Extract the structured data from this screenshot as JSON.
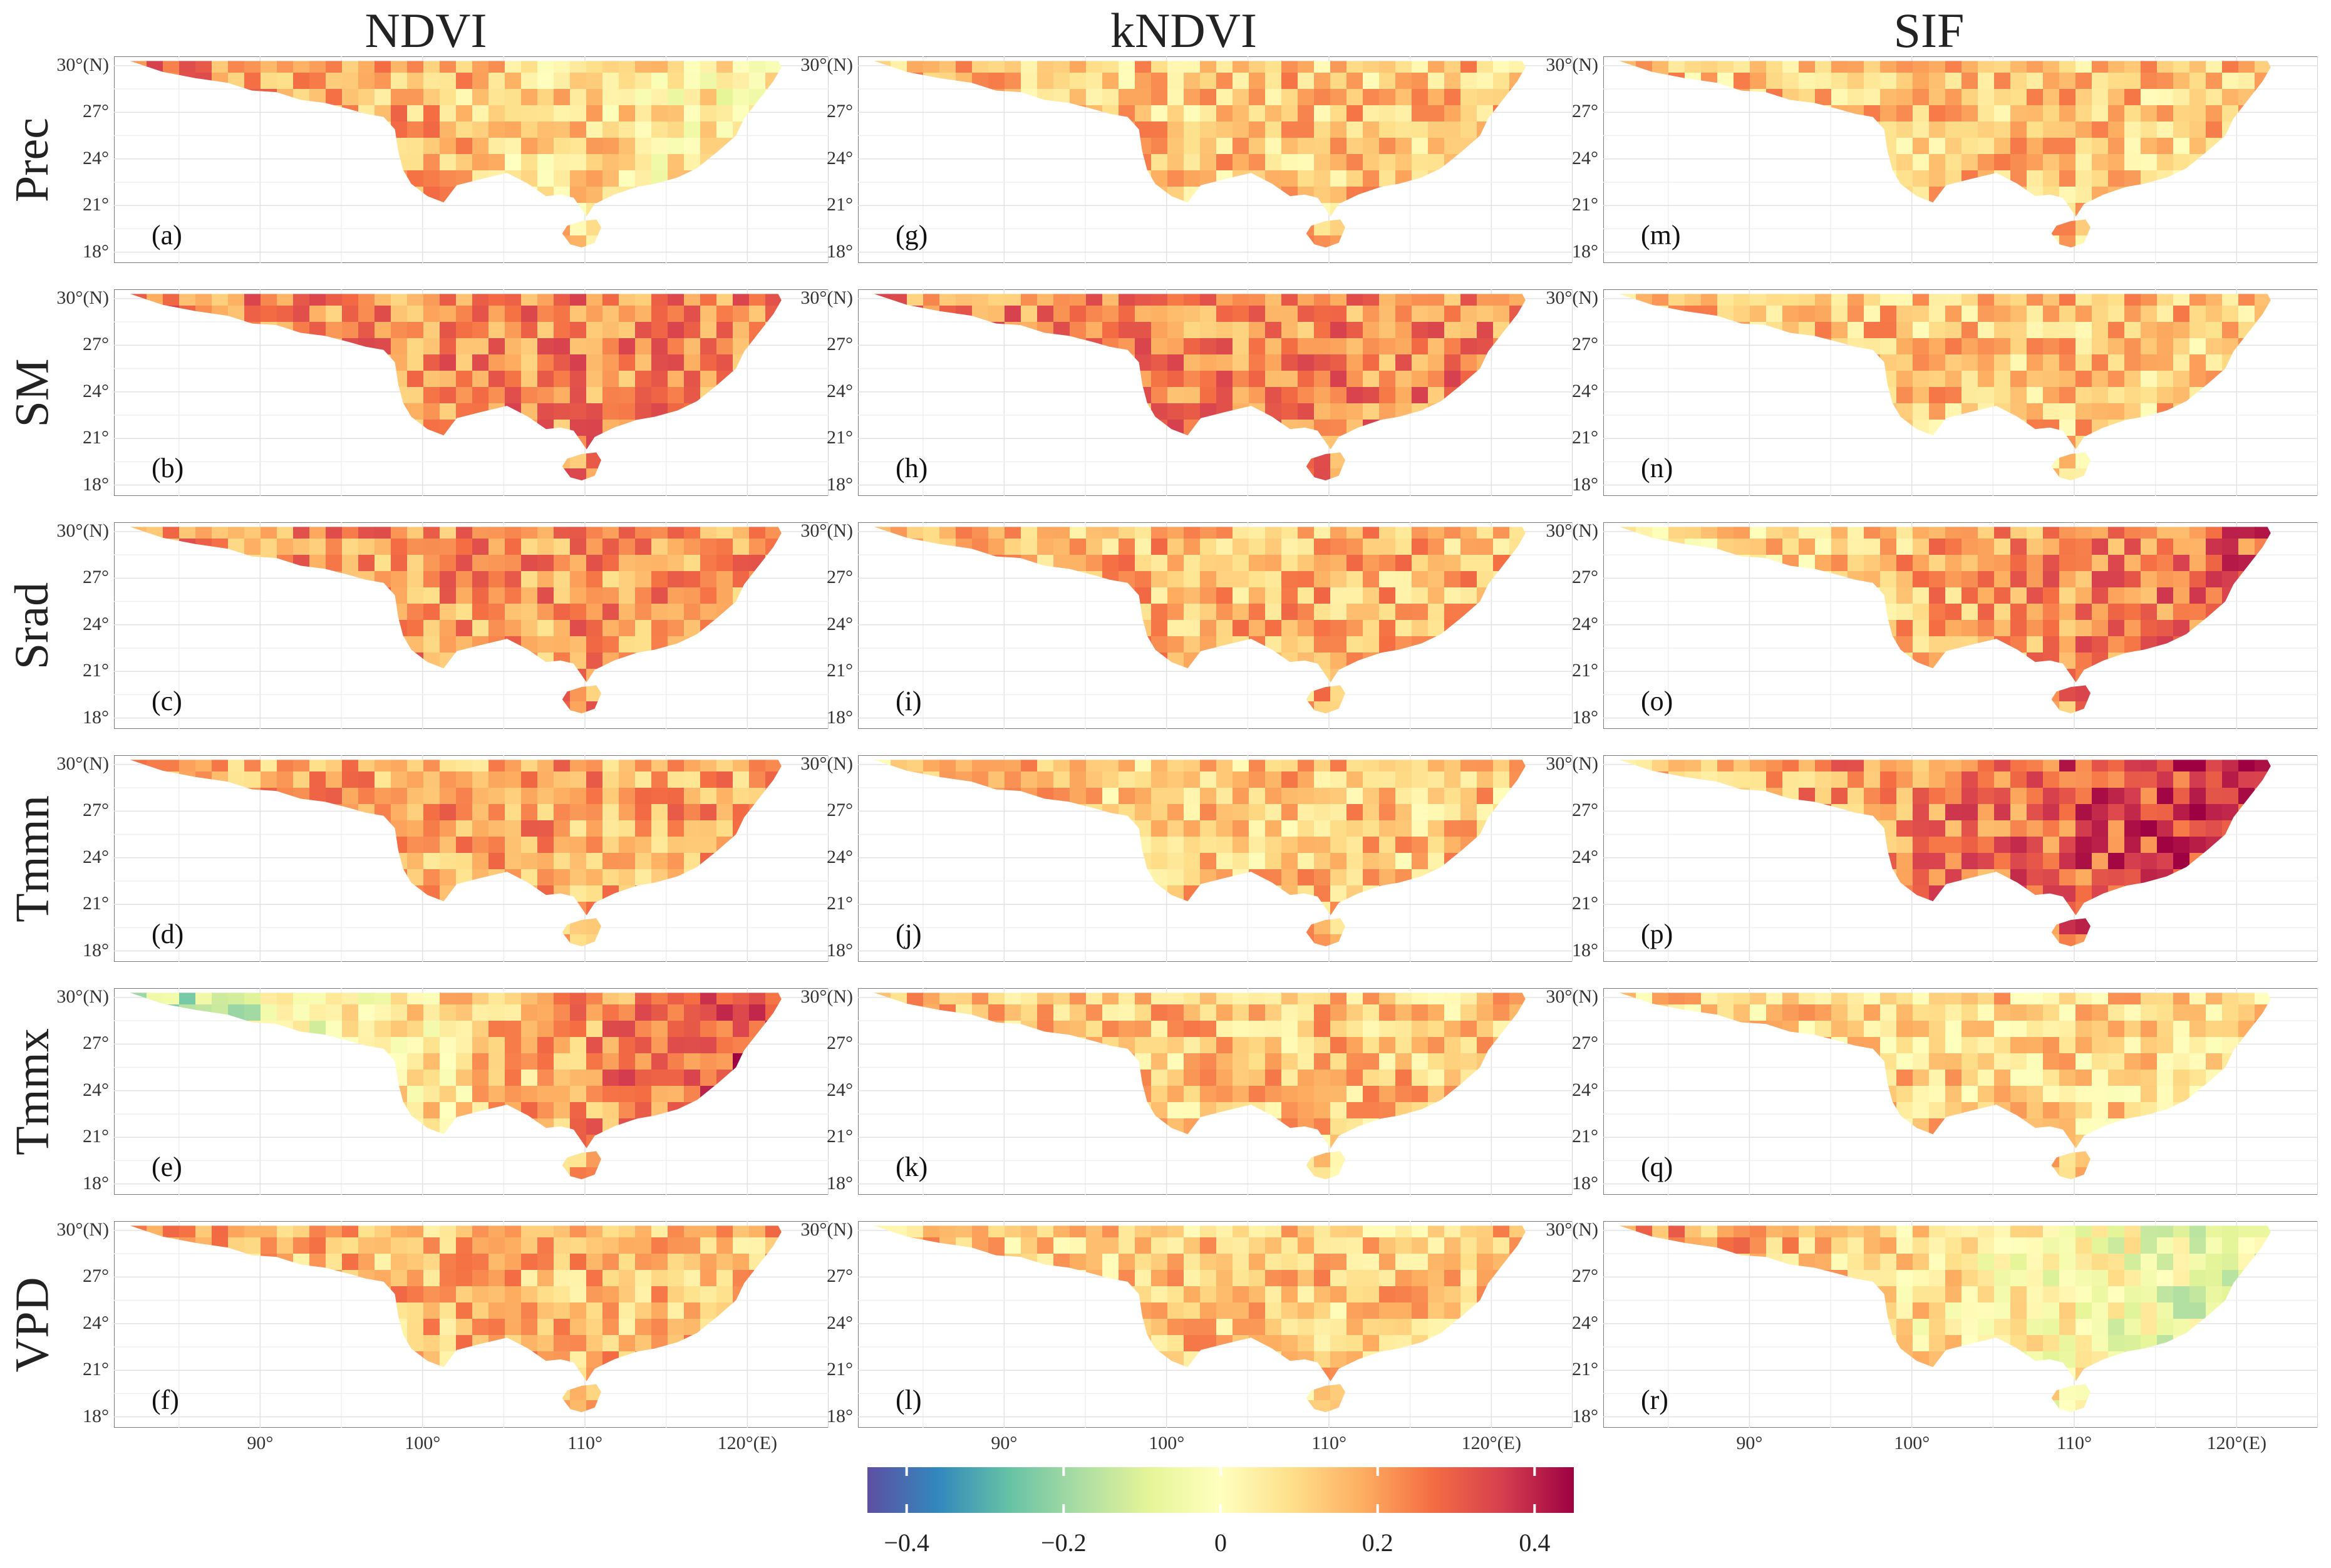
{
  "columns": [
    {
      "title": "NDVI"
    },
    {
      "title": "kNDVI"
    },
    {
      "title": "SIF"
    }
  ],
  "rows": [
    {
      "label": "Prec"
    },
    {
      "label": "SM"
    },
    {
      "label": "Srad"
    },
    {
      "label": "Tmmn"
    },
    {
      "label": "Tmmx"
    },
    {
      "label": "VPD"
    }
  ],
  "panels": [
    {
      "tag": "(a)",
      "col": 0,
      "row": 0,
      "dominant": "mixed warm west, cool east",
      "warm": 0.55
    },
    {
      "tag": "(b)",
      "col": 0,
      "row": 1,
      "dominant": "mostly positive",
      "warm": 0.75
    },
    {
      "tag": "(c)",
      "col": 0,
      "row": 2,
      "dominant": "mostly positive",
      "warm": 0.7
    },
    {
      "tag": "(d)",
      "col": 0,
      "row": 3,
      "dominant": "mostly positive",
      "warm": 0.65
    },
    {
      "tag": "(e)",
      "col": 0,
      "row": 4,
      "dominant": "negative west, positive east",
      "warm": 0.55
    },
    {
      "tag": "(f)",
      "col": 0,
      "row": 5,
      "dominant": "mostly positive",
      "warm": 0.6
    },
    {
      "tag": "(g)",
      "col": 1,
      "row": 0,
      "dominant": "positive south-west",
      "warm": 0.55
    },
    {
      "tag": "(h)",
      "col": 1,
      "row": 1,
      "dominant": "mostly positive",
      "warm": 0.75
    },
    {
      "tag": "(i)",
      "col": 1,
      "row": 2,
      "dominant": "mixed",
      "warm": 0.6
    },
    {
      "tag": "(j)",
      "col": 1,
      "row": 3,
      "dominant": "mixed",
      "warm": 0.55
    },
    {
      "tag": "(k)",
      "col": 1,
      "row": 4,
      "dominant": "positive center",
      "warm": 0.55
    },
    {
      "tag": "(l)",
      "col": 1,
      "row": 5,
      "dominant": "mixed",
      "warm": 0.55
    },
    {
      "tag": "(m)",
      "col": 2,
      "row": 0,
      "dominant": "positive center, negative edges",
      "warm": 0.55
    },
    {
      "tag": "(n)",
      "col": 2,
      "row": 1,
      "dominant": "mixed",
      "warm": 0.55
    },
    {
      "tag": "(o)",
      "col": 2,
      "row": 2,
      "dominant": "positive east",
      "warm": 0.65
    },
    {
      "tag": "(p)",
      "col": 2,
      "row": 3,
      "dominant": "strongly positive east",
      "warm": 0.8
    },
    {
      "tag": "(q)",
      "col": 2,
      "row": 4,
      "dominant": "mixed",
      "warm": 0.5
    },
    {
      "tag": "(r)",
      "col": 2,
      "row": 5,
      "dominant": "negative east",
      "warm": 0.4
    }
  ],
  "lat_ticks": [
    "30°(N)",
    "27°",
    "24°",
    "21°",
    "18°"
  ],
  "lat_values": [
    30,
    27,
    24,
    21,
    18
  ],
  "lon_ticks": [
    "90°",
    "100°",
    "110°",
    "120°(E)"
  ],
  "lon_values": [
    90,
    100,
    110,
    120
  ],
  "lon_range": [
    81,
    125
  ],
  "lat_range": [
    17.3,
    30.6
  ],
  "colorbar": {
    "min": -0.45,
    "max": 0.45,
    "ticks": [
      -0.4,
      -0.2,
      0,
      0.2,
      0.4
    ],
    "tick_labels": [
      "−0.4",
      "−0.2",
      "0",
      "0.2",
      "0.4"
    ],
    "colors": [
      "#5e4fa2",
      "#3288bd",
      "#66c2a5",
      "#abdda4",
      "#e6f598",
      "#ffffbf",
      "#fee08b",
      "#fdae61",
      "#f46d43",
      "#d53e4f",
      "#9e0142"
    ]
  }
}
